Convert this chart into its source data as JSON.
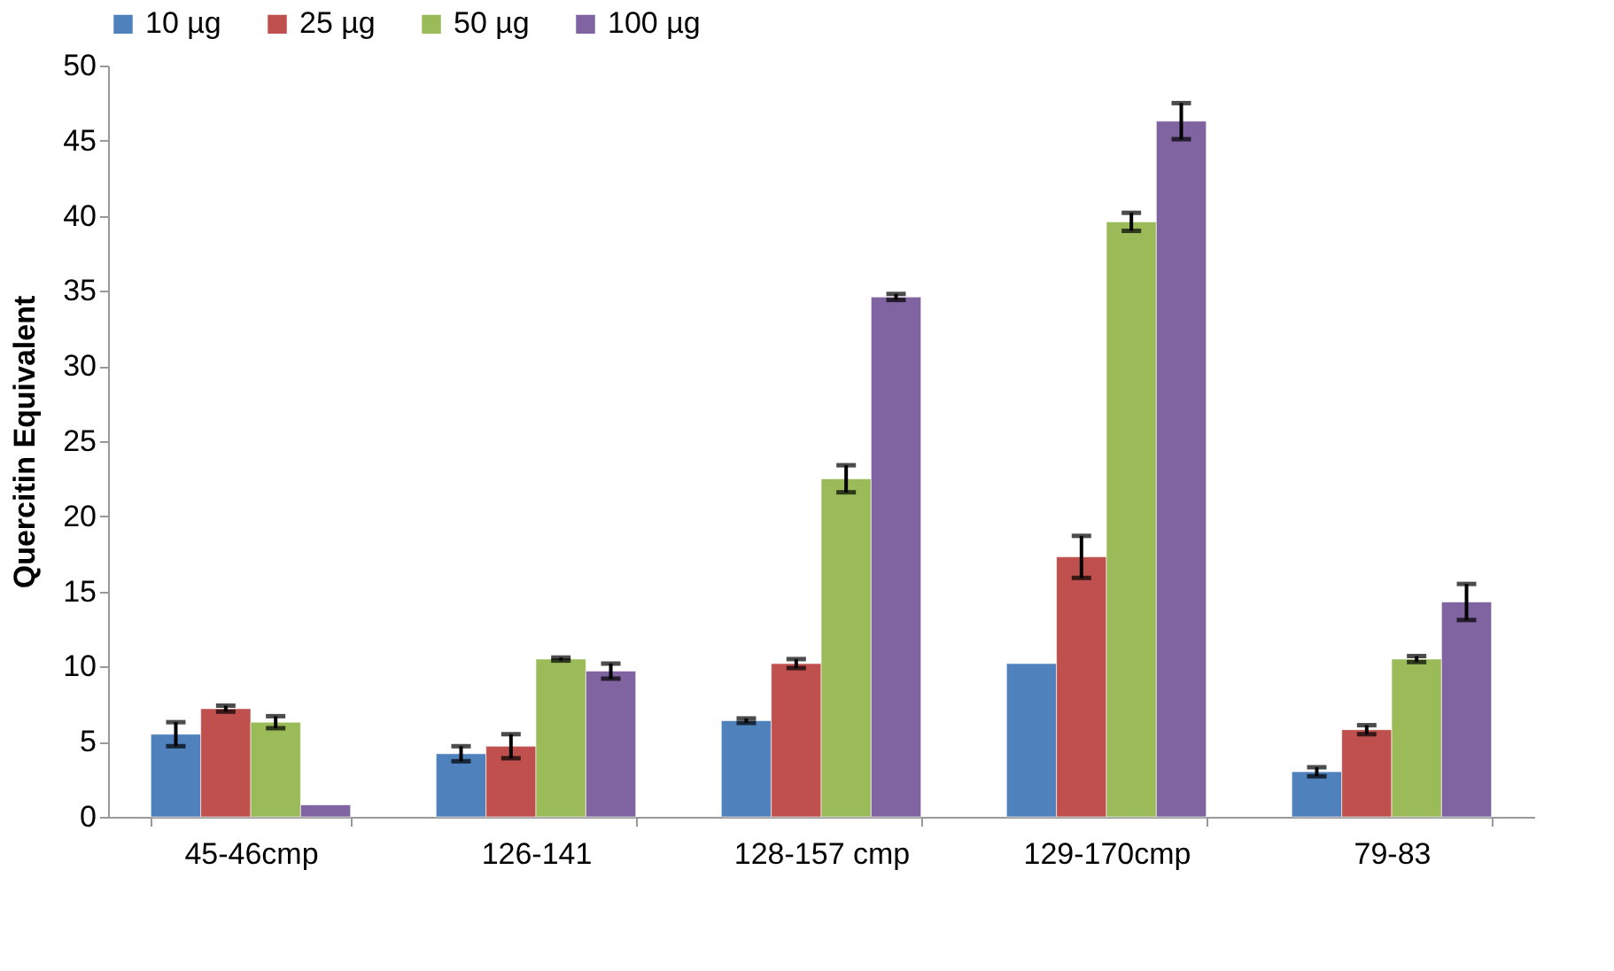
{
  "chart_data": {
    "type": "bar",
    "ylabel": "Quercitin Equivalent",
    "categories": [
      "45-46cmp",
      "126-141",
      "128-157 cmp",
      "129-170cmp",
      "79-83"
    ],
    "series": [
      {
        "name": "10 µg",
        "color": "#4f81bd",
        "values": [
          5.5,
          4.2,
          6.4,
          10.2,
          3.0
        ],
        "errors": [
          0.8,
          0.5,
          0.15,
          null,
          0.3
        ]
      },
      {
        "name": "25 µg",
        "color": "#c0504d",
        "values": [
          7.2,
          4.7,
          10.2,
          17.3,
          5.8
        ],
        "errors": [
          0.2,
          0.8,
          0.3,
          1.4,
          0.3
        ]
      },
      {
        "name": "50 µg",
        "color": "#9bbb59",
        "values": [
          6.3,
          10.5,
          22.5,
          39.6,
          10.5
        ],
        "errors": [
          0.4,
          0.1,
          0.9,
          0.6,
          0.2
        ]
      },
      {
        "name": "100 µg",
        "color": "#8064a2",
        "values": [
          0.8,
          9.7,
          34.6,
          46.3,
          14.3
        ],
        "errors": [
          null,
          0.5,
          0.2,
          1.2,
          1.2
        ]
      }
    ],
    "ylim": [
      0,
      50
    ],
    "yticks": [
      0,
      5,
      10,
      15,
      20,
      25,
      30,
      35,
      40,
      45,
      50
    ],
    "grid": false,
    "legend": "top"
  }
}
